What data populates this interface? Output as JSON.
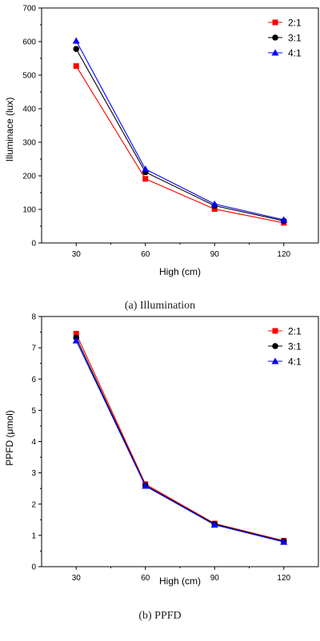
{
  "chart_data": [
    {
      "type": "line",
      "caption": "(a)  Illumination",
      "xlabel": "High (cm)",
      "ylabel": "Illuminace (lux)",
      "x": [
        30,
        60,
        90,
        120
      ],
      "xticks": [
        "30",
        "60",
        "90",
        "120"
      ],
      "xlim": [
        15,
        135
      ],
      "ylim": [
        0,
        700
      ],
      "yticks": [
        "0",
        "100",
        "200",
        "300",
        "400",
        "500",
        "600",
        "700"
      ],
      "legend_position": "top-right",
      "series": [
        {
          "name": "2:1",
          "color": "#ff0000",
          "marker": "square",
          "values": [
            527,
            191,
            101,
            60
          ]
        },
        {
          "name": "3:1",
          "color": "#000000",
          "marker": "circle",
          "values": [
            578,
            211,
            111,
            66
          ]
        },
        {
          "name": "4:1",
          "color": "#0000ff",
          "marker": "triangle",
          "values": [
            602,
            220,
            116,
            69
          ]
        }
      ]
    },
    {
      "type": "line",
      "caption": "(b)  PPFD",
      "xlabel": "High (cm)",
      "ylabel": "PPFD (μmol)",
      "x": [
        30,
        60,
        90,
        120
      ],
      "xticks": [
        "30",
        "60",
        "90",
        "120"
      ],
      "xlim": [
        15,
        135
      ],
      "ylim": [
        0,
        8
      ],
      "yticks": [
        "0",
        "1",
        "2",
        "3",
        "4",
        "5",
        "6",
        "7",
        "8"
      ],
      "legend_position": "top-right",
      "series": [
        {
          "name": "2:1",
          "color": "#ff0000",
          "marker": "square",
          "values": [
            7.45,
            2.64,
            1.38,
            0.83
          ]
        },
        {
          "name": "3:1",
          "color": "#000000",
          "marker": "circle",
          "values": [
            7.32,
            2.6,
            1.36,
            0.81
          ]
        },
        {
          "name": "4:1",
          "color": "#0000ff",
          "marker": "triangle",
          "values": [
            7.23,
            2.58,
            1.34,
            0.79
          ]
        }
      ]
    }
  ]
}
